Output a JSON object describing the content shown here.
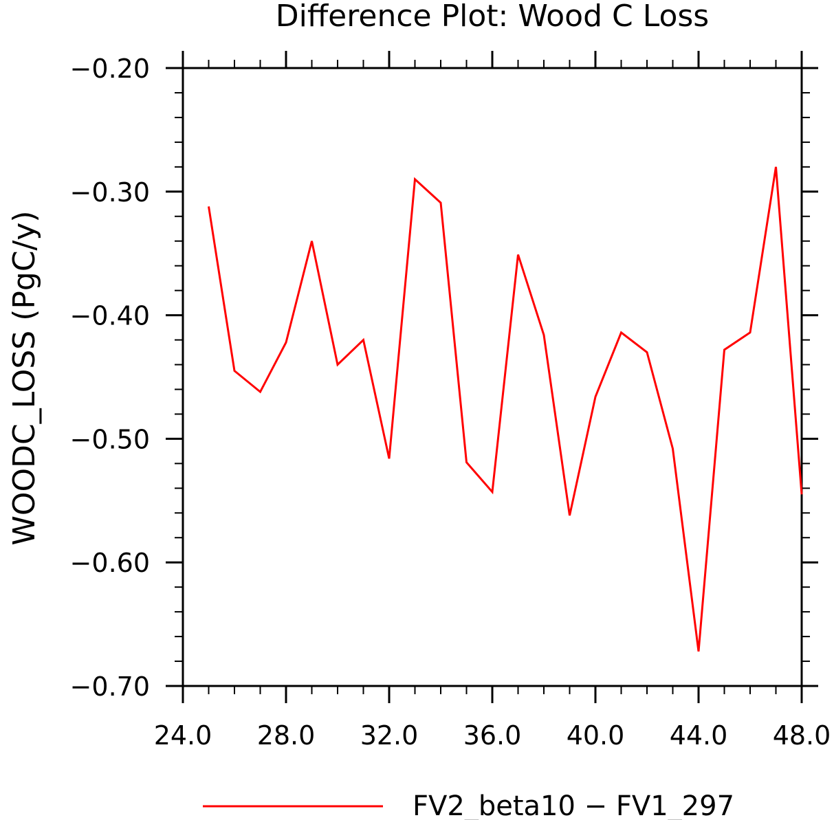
{
  "chart_data": {
    "type": "line",
    "title": "Difference Plot: Wood C Loss",
    "xlabel": "",
    "ylabel": "WOODC_LOSS  (PgC/y)",
    "xlim": [
      24,
      48
    ],
    "ylim": [
      -0.7,
      -0.2
    ],
    "x_ticks": [
      "24.0",
      "28.0",
      "32.0",
      "36.0",
      "40.0",
      "44.0",
      "48.0"
    ],
    "x_tick_values": [
      24,
      28,
      32,
      36,
      40,
      44,
      48
    ],
    "y_ticks": [
      "-0.20",
      "-0.30",
      "-0.40",
      "-0.50",
      "-0.60",
      "-0.70"
    ],
    "y_tick_values": [
      -0.2,
      -0.3,
      -0.4,
      -0.5,
      -0.6,
      -0.7
    ],
    "grid": false,
    "legend_position": "bottom",
    "series": [
      {
        "name": "FV2_beta10 - FV1_297",
        "color": "#ff0000",
        "x": [
          25,
          26,
          27,
          28,
          29,
          30,
          31,
          32,
          33,
          34,
          35,
          36,
          37,
          38,
          39,
          40,
          41,
          42,
          43,
          44,
          45,
          46,
          47,
          48
        ],
        "y": [
          -0.312,
          -0.445,
          -0.462,
          -0.422,
          -0.34,
          -0.44,
          -0.42,
          -0.516,
          -0.29,
          -0.309,
          -0.519,
          -0.543,
          -0.351,
          -0.416,
          -0.562,
          -0.466,
          -0.414,
          -0.43,
          -0.508,
          -0.672,
          -0.428,
          -0.414,
          -0.28,
          -0.545
        ]
      }
    ]
  }
}
